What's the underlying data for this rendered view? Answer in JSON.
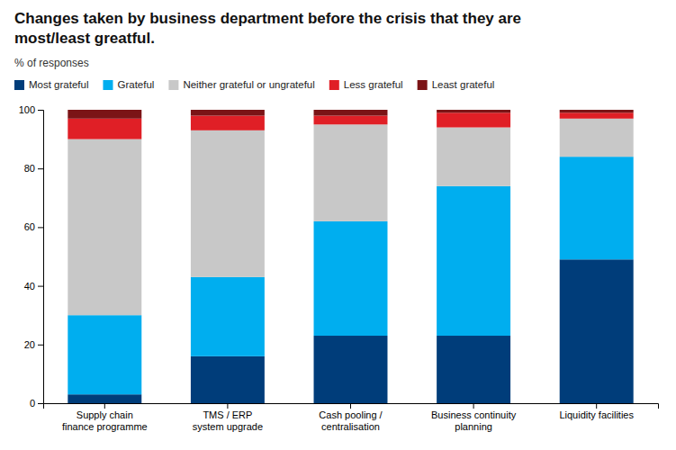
{
  "chart_data": {
    "type": "bar",
    "stacked": true,
    "title": "Changes taken by business department before the crisis that they are\nmost/least greatful.",
    "subtitle": "% of responses",
    "categories": [
      "Supply chain\nfinance programme",
      "TMS / ERP\nsystem upgrade",
      "Cash pooling /\ncentralisation",
      "Business continuity\nplanning",
      "Liquidity facilities"
    ],
    "series": [
      {
        "name": "Most grateful",
        "color": "#003d7a",
        "values": [
          3,
          16,
          23,
          23,
          49
        ]
      },
      {
        "name": "Grateful",
        "color": "#00aeef",
        "values": [
          27,
          27,
          39,
          51,
          35
        ]
      },
      {
        "name": "Neither grateful or ungrateful",
        "color": "#c8c8c8",
        "values": [
          60,
          50,
          33,
          20,
          13
        ]
      },
      {
        "name": "Less grateful",
        "color": "#e01f26",
        "values": [
          7,
          5,
          3,
          5,
          2
        ]
      },
      {
        "name": "Least grateful",
        "color": "#7b1416",
        "values": [
          3,
          2,
          2,
          1,
          1
        ]
      }
    ],
    "ylim": [
      0,
      100
    ],
    "yticks": [
      0,
      20,
      40,
      60,
      80,
      100
    ],
    "grid": false,
    "legend": "top"
  }
}
